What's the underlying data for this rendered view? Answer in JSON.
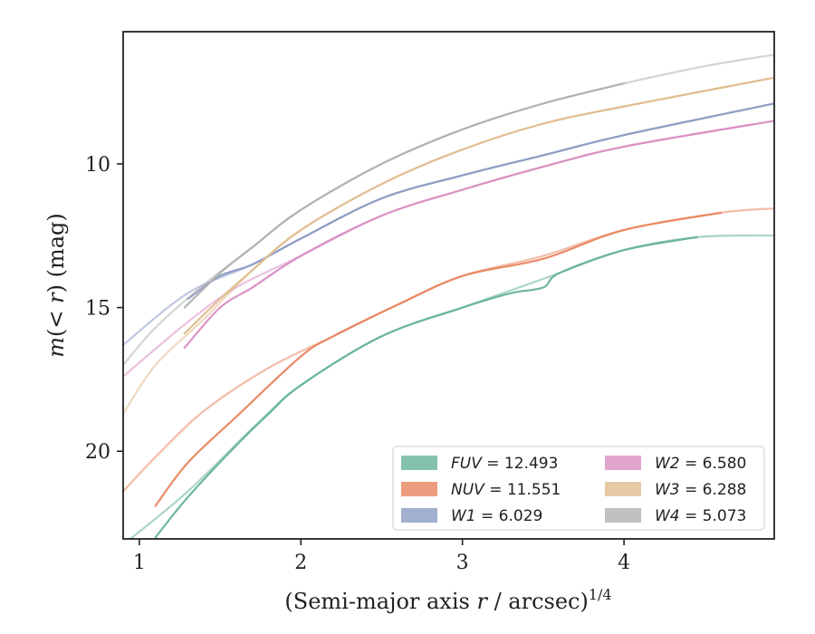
{
  "chart_data": {
    "type": "line",
    "title": "",
    "xlabel": "(Semi-major axis ",
    "xlabel_var": "r",
    "xlabel_unit": " / arcsec)",
    "xlabel_sup": "1/4",
    "ylabel_pre": "m",
    "ylabel_mid": "(< ",
    "ylabel_var": "r",
    "ylabel_post": ") (mag)",
    "xlim": [
      0.9,
      4.93
    ],
    "ylim": [
      23.05,
      5.4
    ],
    "y_inverted": true,
    "x_ticks": [
      {
        "v": 1,
        "label": "1"
      },
      {
        "v": 2,
        "label": "2"
      },
      {
        "v": 3,
        "label": "3"
      },
      {
        "v": 4,
        "label": "4"
      }
    ],
    "y_ticks": [
      {
        "v": 10,
        "label": "10"
      },
      {
        "v": 15,
        "label": "15"
      },
      {
        "v": 20,
        "label": "20"
      }
    ],
    "grid": false,
    "legend_position": "lower-right",
    "legend_columns": 2,
    "series": [
      {
        "name": "FUV",
        "value": "12.493",
        "color": "#66b399",
        "faint": [
          [
            0.9,
            23.25
          ],
          [
            1.3,
            21.4
          ],
          [
            1.7,
            19.2
          ],
          [
            2.0,
            17.7
          ],
          [
            2.5,
            16.0
          ],
          [
            3.0,
            15.0
          ],
          [
            3.5,
            14.0
          ],
          [
            4.0,
            13.0
          ],
          [
            4.45,
            12.55
          ],
          [
            4.93,
            12.49
          ]
        ],
        "main": [
          [
            1.1,
            23.0
          ],
          [
            1.3,
            21.6
          ],
          [
            1.6,
            19.8
          ],
          [
            1.8,
            18.7
          ],
          [
            2.0,
            17.7
          ],
          [
            2.5,
            16.0
          ],
          [
            3.0,
            15.0
          ],
          [
            3.3,
            14.5
          ],
          [
            3.5,
            14.3
          ],
          [
            3.6,
            13.8
          ],
          [
            4.0,
            13.0
          ],
          [
            4.45,
            12.55
          ]
        ]
      },
      {
        "name": "NUV",
        "value": "11.551",
        "color": "#e8855f",
        "faint": [
          [
            0.9,
            21.4
          ],
          [
            1.1,
            20.2
          ],
          [
            1.4,
            18.6
          ],
          [
            1.8,
            17.1
          ],
          [
            2.2,
            16.0
          ],
          [
            2.6,
            14.9
          ],
          [
            3.0,
            13.9
          ],
          [
            3.5,
            13.2
          ],
          [
            4.0,
            12.3
          ],
          [
            4.6,
            11.7
          ],
          [
            4.93,
            11.55
          ]
        ],
        "main": [
          [
            1.1,
            21.9
          ],
          [
            1.3,
            20.4
          ],
          [
            1.6,
            18.8
          ],
          [
            2.0,
            16.7
          ],
          [
            2.2,
            16.0
          ],
          [
            2.6,
            14.9
          ],
          [
            3.0,
            13.9
          ],
          [
            3.5,
            13.3
          ],
          [
            4.0,
            12.3
          ],
          [
            4.6,
            11.7
          ]
        ]
      },
      {
        "name": "W1",
        "value": "6.029",
        "color": "#8a9cc2",
        "faint": [
          [
            0.9,
            16.3
          ],
          [
            1.3,
            14.5
          ],
          [
            1.7,
            13.5
          ],
          [
            2.0,
            12.6
          ],
          [
            2.5,
            11.2
          ],
          [
            3.0,
            10.4
          ],
          [
            3.5,
            9.7
          ],
          [
            4.0,
            9.0
          ],
          [
            4.93,
            7.9
          ]
        ],
        "main": [
          [
            1.3,
            14.7
          ],
          [
            1.5,
            13.9
          ],
          [
            1.7,
            13.5
          ],
          [
            2.0,
            12.6
          ],
          [
            2.5,
            11.2
          ],
          [
            3.0,
            10.4
          ],
          [
            3.5,
            9.7
          ],
          [
            4.0,
            9.0
          ],
          [
            4.93,
            7.9
          ]
        ]
      },
      {
        "name": "W2",
        "value": "6.580",
        "color": "#d98ec2",
        "faint": [
          [
            0.9,
            17.4
          ],
          [
            1.3,
            15.5
          ],
          [
            1.6,
            14.3
          ],
          [
            2.0,
            13.2
          ],
          [
            2.5,
            11.8
          ],
          [
            3.0,
            10.9
          ],
          [
            3.5,
            10.1
          ],
          [
            4.0,
            9.4
          ],
          [
            4.93,
            8.5
          ]
        ],
        "main": [
          [
            1.28,
            16.4
          ],
          [
            1.5,
            15.0
          ],
          [
            1.7,
            14.3
          ],
          [
            2.0,
            13.2
          ],
          [
            2.5,
            11.8
          ],
          [
            3.0,
            10.9
          ],
          [
            3.5,
            10.1
          ],
          [
            4.0,
            9.4
          ],
          [
            4.93,
            8.5
          ]
        ]
      },
      {
        "name": "W3",
        "value": "6.288",
        "color": "#e0bc8e",
        "faint": [
          [
            0.9,
            18.7
          ],
          [
            1.1,
            17.0
          ],
          [
            1.4,
            15.4
          ],
          [
            1.7,
            13.7
          ],
          [
            2.0,
            12.3
          ],
          [
            2.5,
            10.7
          ],
          [
            3.0,
            9.5
          ],
          [
            3.5,
            8.6
          ],
          [
            4.0,
            8.0
          ],
          [
            4.93,
            7.0
          ]
        ],
        "main": [
          [
            1.28,
            15.9
          ],
          [
            1.5,
            14.7
          ],
          [
            1.7,
            13.7
          ],
          [
            2.0,
            12.3
          ],
          [
            2.5,
            10.7
          ],
          [
            3.0,
            9.5
          ],
          [
            3.5,
            8.6
          ],
          [
            4.0,
            8.0
          ],
          [
            4.93,
            7.0
          ]
        ]
      },
      {
        "name": "W4",
        "value": "5.073",
        "color": "#b0b0b0",
        "faint": [
          [
            0.9,
            17.0
          ],
          [
            1.1,
            15.7
          ],
          [
            1.4,
            14.2
          ],
          [
            1.7,
            12.9
          ],
          [
            2.0,
            11.6
          ],
          [
            2.5,
            10.0
          ],
          [
            3.0,
            8.8
          ],
          [
            3.5,
            7.9
          ],
          [
            4.0,
            7.2
          ],
          [
            4.5,
            6.6
          ],
          [
            4.93,
            6.2
          ]
        ],
        "main": [
          [
            1.28,
            15.0
          ],
          [
            1.5,
            13.8
          ],
          [
            1.7,
            12.9
          ],
          [
            2.0,
            11.6
          ],
          [
            2.5,
            10.0
          ],
          [
            3.0,
            8.8
          ],
          [
            3.5,
            7.9
          ],
          [
            4.0,
            7.2
          ]
        ]
      }
    ]
  }
}
